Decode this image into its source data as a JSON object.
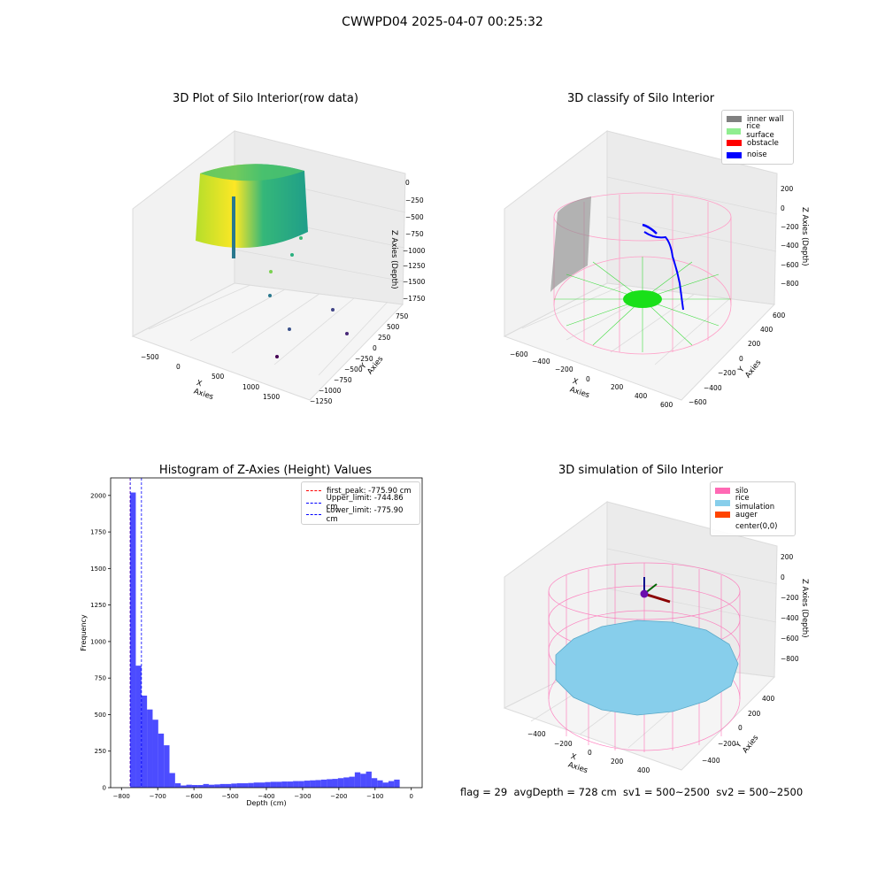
{
  "figure": {
    "suptitle": "CWWPD04 2025-04-07 00:25:32",
    "flag_line": "flag = 29  avgDepth = 728 cm  sv1 = 500~2500  sv2 = 500~2500"
  },
  "chart_data": [
    {
      "type": "scatter3d",
      "title": "3D Plot of Silo Interior(row data)",
      "xlabel": "X Axies",
      "ylabel": "Y Axies",
      "zlabel": "Z Axies (Depth)",
      "x_ticks": [
        "−500",
        "0",
        "500",
        "1000",
        "1500"
      ],
      "y_ticks": [
        "750",
        "500",
        "250",
        "0",
        "−250",
        "−500",
        "−750",
        "−1000",
        "−1250"
      ],
      "z_ticks": [
        "0",
        "−250",
        "−500",
        "−750",
        "−1000",
        "−1250",
        "−1500",
        "−1750"
      ],
      "colormap": "viridis"
    },
    {
      "type": "scatter3d",
      "title": "3D classify of Silo Interior",
      "xlabel": "X Axies",
      "ylabel": "Y Axies",
      "zlabel": "Z Axies (Depth)",
      "x_ticks": [
        "−600",
        "−400",
        "−200",
        "0",
        "200",
        "400",
        "600"
      ],
      "y_ticks": [
        "600",
        "400",
        "200",
        "0",
        "−200",
        "−400",
        "−600"
      ],
      "z_ticks": [
        "200",
        "0",
        "−200",
        "−400",
        "−600",
        "−800"
      ],
      "legend": [
        {
          "label": "inner wall",
          "color": "#808080"
        },
        {
          "label": "rice surface",
          "color": "#90ee90"
        },
        {
          "label": "obstacle",
          "color": "#ff0000"
        },
        {
          "label": "noise",
          "color": "#0000ff"
        }
      ]
    },
    {
      "type": "bar",
      "title": "Histogram of Z-Axies (Height) Values",
      "xlabel": "Depth (cm)",
      "ylabel": "Frequency",
      "xlim": [
        -830,
        30
      ],
      "ylim": [
        0,
        2120
      ],
      "x_ticks": [
        {
          "v": -800,
          "t": "−800"
        },
        {
          "v": -700,
          "t": "−700"
        },
        {
          "v": -600,
          "t": "−600"
        },
        {
          "v": -500,
          "t": "−500"
        },
        {
          "v": -400,
          "t": "−400"
        },
        {
          "v": -300,
          "t": "−300"
        },
        {
          "v": -200,
          "t": "−200"
        },
        {
          "v": -100,
          "t": "−100"
        },
        {
          "v": 0,
          "t": "0"
        }
      ],
      "y_ticks": [
        {
          "v": 0,
          "t": "0"
        },
        {
          "v": 250,
          "t": "250"
        },
        {
          "v": 500,
          "t": "500"
        },
        {
          "v": 750,
          "t": "750"
        },
        {
          "v": 1000,
          "t": "1000"
        },
        {
          "v": 1250,
          "t": "1250"
        },
        {
          "v": 1500,
          "t": "1500"
        },
        {
          "v": 1750,
          "t": "1750"
        },
        {
          "v": 2000,
          "t": "2000"
        }
      ],
      "bin_start": -776,
      "bin_width": 15.5,
      "values": [
        2020,
        835,
        630,
        535,
        465,
        370,
        290,
        100,
        30,
        15,
        20,
        18,
        18,
        25,
        20,
        22,
        25,
        25,
        28,
        30,
        30,
        32,
        35,
        35,
        38,
        40,
        40,
        42,
        42,
        45,
        45,
        48,
        50,
        52,
        55,
        58,
        60,
        65,
        70,
        75,
        105,
        95,
        110,
        65,
        50,
        35,
        45,
        55
      ],
      "bar_color": "#0000ff",
      "vlines": [
        {
          "label": "first_peak: -775.90 cm",
          "x": -775.9,
          "color": "#ff0000"
        },
        {
          "label": "Upper_limit: -744.86 cm",
          "x": -744.86,
          "color": "#0000ff"
        },
        {
          "label": "Lower_limit: -775.90 cm",
          "x": -775.9,
          "color": "#0000ff"
        }
      ]
    },
    {
      "type": "surface3d",
      "title": "3D simulation of Silo Interior",
      "xlabel": "X Axies",
      "ylabel": "Y Axies",
      "zlabel": "Z Axies (Depth)",
      "x_ticks": [
        "−400",
        "−200",
        "0",
        "200",
        "400"
      ],
      "y_ticks": [
        "400",
        "200",
        "0",
        "−200",
        "−400"
      ],
      "z_ticks": [
        "200",
        "0",
        "−200",
        "−400",
        "−600",
        "−800"
      ],
      "legend": [
        {
          "label": "silo",
          "color": "#ff69b4"
        },
        {
          "label": "rice simulation",
          "color": "#87ceeb"
        },
        {
          "label": "auger",
          "color": "#ff4500"
        },
        {
          "label": "center(0,0)",
          "color": "#ffffff"
        }
      ]
    }
  ]
}
